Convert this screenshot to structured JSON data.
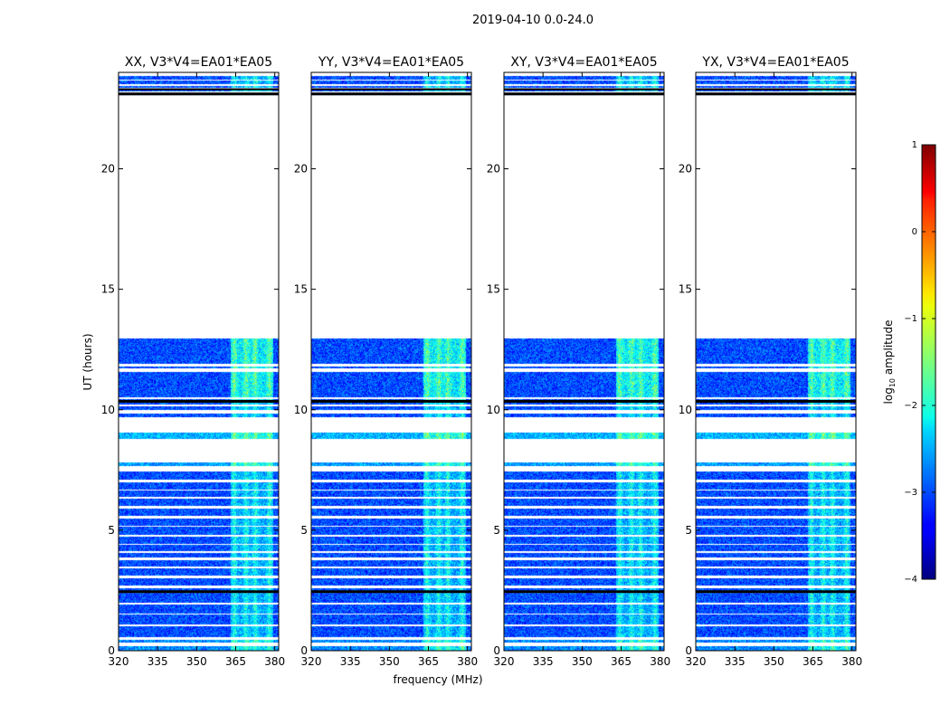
{
  "chart_data": {
    "type": "heatmap",
    "suptitle": "2019-04-10 0.0-24.0",
    "xlabel": "frequency (MHz)",
    "ylabel": "UT (hours)",
    "xlim": [
      320,
      381.5
    ],
    "ylim": [
      0,
      24
    ],
    "x_ticks": [
      320,
      335,
      350,
      365,
      380
    ],
    "x_tick_labels": [
      "320",
      "335",
      "350",
      "365",
      "380"
    ],
    "y_ticks": [
      0,
      5,
      10,
      15,
      20
    ],
    "y_tick_labels": [
      "0",
      "5",
      "10",
      "15",
      "20"
    ],
    "panels": [
      {
        "title": "XX, V3*V4=EA01*EA05"
      },
      {
        "title": "YY, V3*V4=EA01*EA05"
      },
      {
        "title": "XY, V3*V4=EA01*EA05"
      },
      {
        "title": "YX, V3*V4=EA01*EA05"
      }
    ],
    "colorbar": {
      "label": "log10 amplitude",
      "label_main": "log",
      "label_sub": "10",
      "label_rest": " amplitude",
      "range": [
        -4,
        1
      ],
      "ticks": [
        1,
        0,
        -1,
        -2,
        -3,
        -4
      ],
      "tick_labels": [
        "1",
        "0",
        "−1",
        "−2",
        "−3",
        "−4"
      ],
      "colormap": "jet"
    },
    "data_segments_hours": [
      [
        0.0,
        0.2
      ],
      [
        0.35,
        0.45
      ],
      [
        0.55,
        1.0
      ],
      [
        1.1,
        1.5
      ],
      [
        1.55,
        1.9
      ],
      [
        2.0,
        2.4
      ],
      [
        2.45,
        2.6
      ],
      [
        2.7,
        3.0
      ],
      [
        3.1,
        3.4
      ],
      [
        3.5,
        3.75
      ],
      [
        3.85,
        4.05
      ],
      [
        4.15,
        4.4
      ],
      [
        4.45,
        4.75
      ],
      [
        4.8,
        5.15
      ],
      [
        5.2,
        5.5
      ],
      [
        5.6,
        5.9
      ],
      [
        6.0,
        6.3
      ],
      [
        6.4,
        6.65
      ],
      [
        6.7,
        7.0
      ],
      [
        7.1,
        7.45
      ],
      [
        7.65,
        7.8
      ],
      [
        8.8,
        9.05
      ],
      [
        9.7,
        9.85
      ],
      [
        10.0,
        10.15
      ],
      [
        10.2,
        10.45
      ],
      [
        10.5,
        11.55
      ],
      [
        11.7,
        11.8
      ],
      [
        11.9,
        12.95
      ],
      [
        23.05,
        23.1
      ],
      [
        23.2,
        23.3
      ],
      [
        23.35,
        23.45
      ],
      [
        23.5,
        23.65
      ],
      [
        23.7,
        23.85
      ]
    ],
    "rfi_band_mhz": [
      363,
      381
    ],
    "rfi_column_peaks_mhz": [
      364.5,
      369,
      372.5,
      378
    ],
    "background_level_log10": -3.0,
    "rfi_level_log10": -2.3,
    "bright_row_hours": [
      0.2,
      0.35
    ],
    "bright_row_level_log10": -0.7
  }
}
